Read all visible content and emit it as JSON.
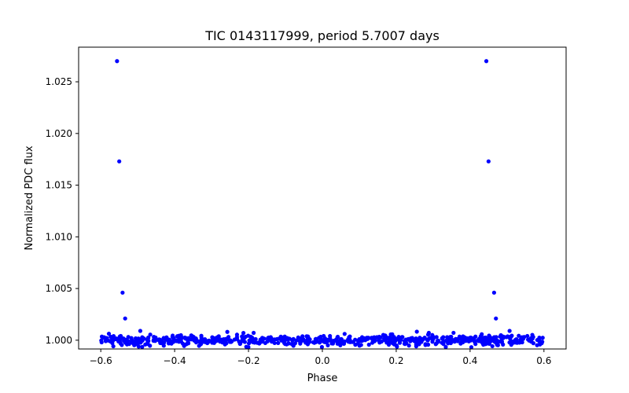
{
  "chart_data": {
    "type": "scatter",
    "title": "TIC 0143117999, period 5.7007 days",
    "xlabel": "Phase",
    "ylabel": "Normalized PDC flux",
    "xlim": [
      -0.66,
      0.66
    ],
    "ylim": [
      0.99915,
      1.02835
    ],
    "xticks": [
      -0.6,
      -0.4,
      -0.2,
      0.0,
      0.2,
      0.4,
      0.6
    ],
    "xtick_labels": [
      "−0.6",
      "−0.4",
      "−0.2",
      "0.0",
      "0.2",
      "0.4",
      "0.6"
    ],
    "yticks": [
      1.0,
      1.005,
      1.01,
      1.015,
      1.02,
      1.025
    ],
    "ytick_labels": [
      "1.000",
      "1.005",
      "1.010",
      "1.015",
      "1.020",
      "1.025"
    ],
    "marker_color": "#0000ff",
    "grid": false,
    "series": [
      {
        "name": "flux",
        "outliers": [
          {
            "x": -0.556,
            "y": 1.027
          },
          {
            "x": -0.55,
            "y": 1.0173
          },
          {
            "x": -0.541,
            "y": 1.0046
          },
          {
            "x": -0.534,
            "y": 1.0021
          },
          {
            "x": -0.493,
            "y": 1.0009
          },
          {
            "x": 0.444,
            "y": 1.027
          },
          {
            "x": 0.45,
            "y": 1.0173
          },
          {
            "x": 0.465,
            "y": 1.0046
          },
          {
            "x": 0.47,
            "y": 1.0021
          },
          {
            "x": 0.507,
            "y": 1.0009
          }
        ],
        "baseline": {
          "x_range": [
            -0.6,
            0.6
          ],
          "n_points": 700,
          "y_center": 1.0,
          "y_scatter": 0.00025,
          "y_min": 0.9993,
          "y_max": 1.0009
        }
      }
    ]
  }
}
